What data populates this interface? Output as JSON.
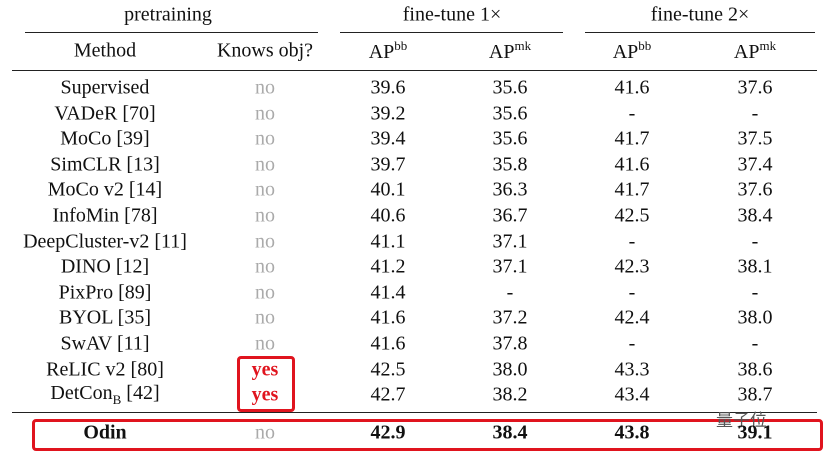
{
  "header": {
    "groups": [
      "pretraining",
      "fine-tune 1×",
      "fine-tune 2×"
    ],
    "columns": [
      "Method",
      "Knows obj?",
      {
        "base": "AP",
        "sup": "bb"
      },
      {
        "base": "AP",
        "sup": "mk"
      },
      {
        "base": "AP",
        "sup": "bb"
      },
      {
        "base": "AP",
        "sup": "mk"
      }
    ]
  },
  "rows": [
    [
      "Supervised",
      "no",
      "39.6",
      "35.6",
      "41.6",
      "37.6"
    ],
    [
      "VADeR [70]",
      "no",
      "39.2",
      "35.6",
      "-",
      "-"
    ],
    [
      "MoCo [39]",
      "no",
      "39.4",
      "35.6",
      "41.7",
      "37.5"
    ],
    [
      "SimCLR [13]",
      "no",
      "39.7",
      "35.8",
      "41.6",
      "37.4"
    ],
    [
      "MoCo v2 [14]",
      "no",
      "40.1",
      "36.3",
      "41.7",
      "37.6"
    ],
    [
      "InfoMin [78]",
      "no",
      "40.6",
      "36.7",
      "42.5",
      "38.4"
    ],
    [
      "DeepCluster-v2 [11]",
      "no",
      "41.1",
      "37.1",
      "-",
      "-"
    ],
    [
      "DINO [12]",
      "no",
      "41.2",
      "37.1",
      "42.3",
      "38.1"
    ],
    [
      "PixPro [89]",
      "no",
      "41.4",
      "-",
      "-",
      "-"
    ],
    [
      "BYOL [35]",
      "no",
      "41.6",
      "37.2",
      "42.4",
      "38.0"
    ],
    [
      "SwAV [11]",
      "no",
      "41.6",
      "37.8",
      "-",
      "-"
    ],
    [
      "ReLIC v2 [80]",
      "yes",
      "42.5",
      "38.0",
      "43.3",
      "38.6"
    ],
    [
      {
        "base": "DetCon",
        "sub": "B",
        "suffix": " [42]"
      },
      "yes",
      "42.7",
      "38.2",
      "43.4",
      "38.7"
    ]
  ],
  "ours": [
    "Odin",
    "no",
    "42.9",
    "38.4",
    "43.8",
    "39.1"
  ],
  "watermark": "量子位"
}
